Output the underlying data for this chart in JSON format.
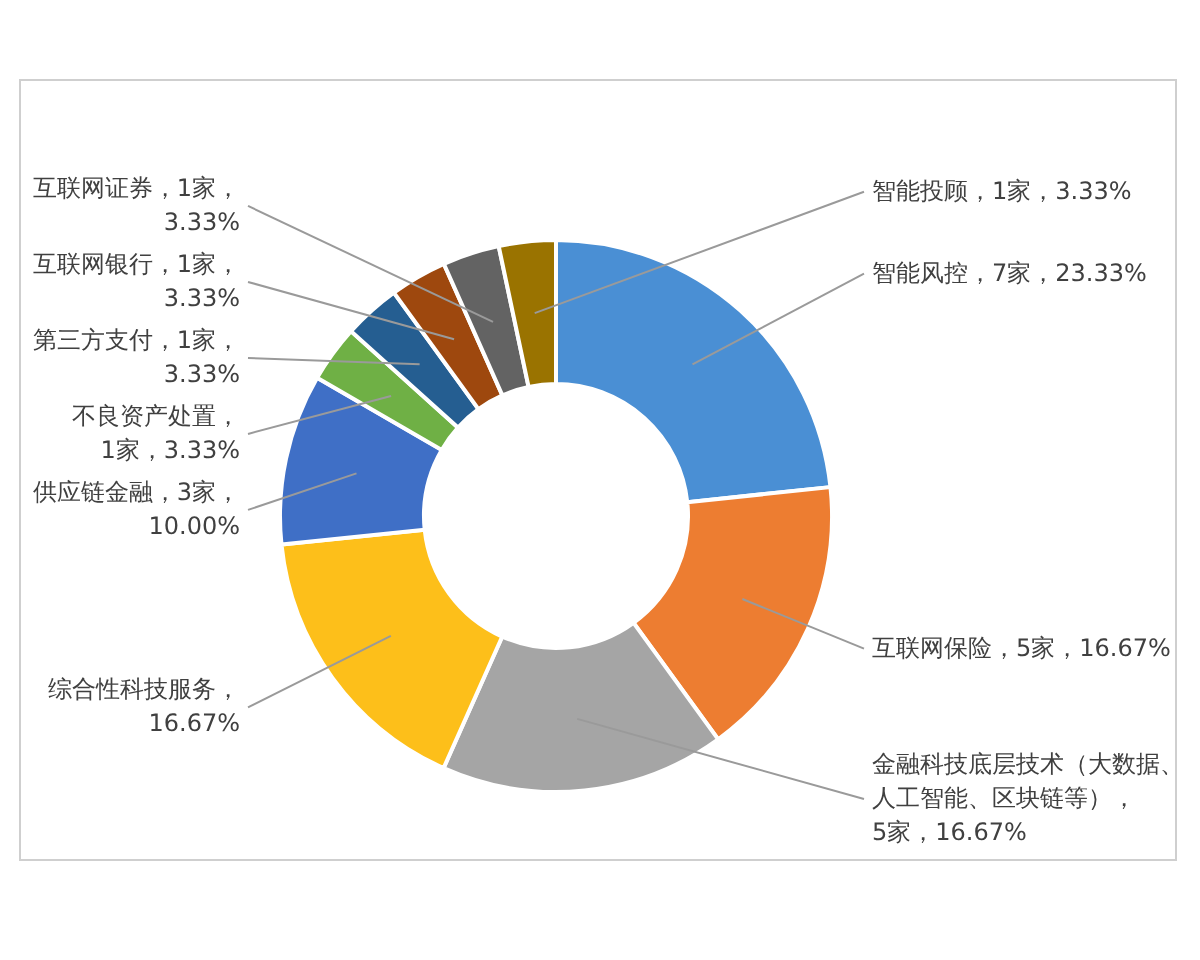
{
  "chart_data": {
    "type": "donut",
    "categories": [
      "智能风控，7家，23.33%",
      "互联网保险，5家，16.67%",
      "金融科技底层技术（大数据、人工智能、区块链等），5家，16.67%",
      "综合性科技服务，16.67%",
      "供应链金融，3家，10.00%",
      "不良资产处置，1家，3.33%",
      "第三方支付，1家，3.33%",
      "互联网银行，1家，3.33%",
      "互联网证券，1家，3.33%",
      "智能投顾，1家，3.33%"
    ],
    "values": [
      23.33,
      16.67,
      16.67,
      16.67,
      10,
      3.33,
      3.33,
      3.33,
      3.33,
      3.33
    ],
    "colors": [
      "#4a8fd4",
      "#ed7d31",
      "#a5a5a5",
      "#fdbf1a",
      "#3f6fc6",
      "#6fb045",
      "#255e91",
      "#9e480e",
      "#636363",
      "#9a7300"
    ]
  }
}
